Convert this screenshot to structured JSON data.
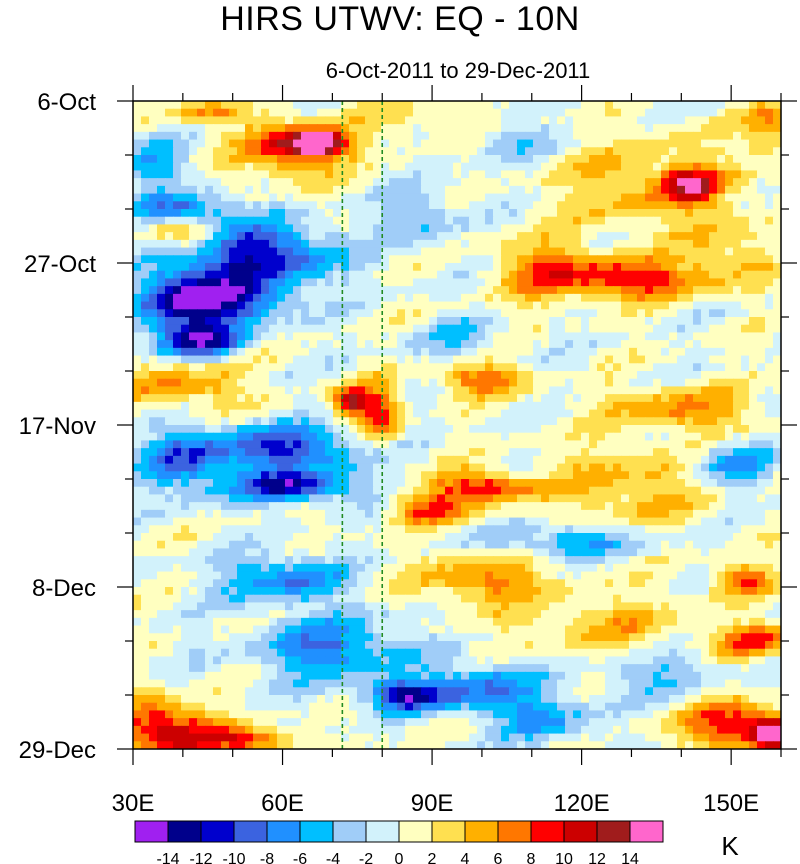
{
  "chart_data": {
    "type": "heatmap",
    "title": "HIRS UTWV: EQ - 10N",
    "subtitle": "6-Oct-2011 to 29-Dec-2011",
    "x_axis": {
      "range": [
        30,
        160
      ],
      "tick_values": [
        30,
        60,
        90,
        120,
        150
      ],
      "tick_labels": [
        "30E",
        "60E",
        "90E",
        "120E",
        "150E"
      ],
      "minor_step": 10
    },
    "y_axis": {
      "range_days": [
        0,
        84
      ],
      "tick_days": [
        0,
        21,
        42,
        63,
        84
      ],
      "tick_labels": [
        "6-Oct",
        "27-Oct",
        "17-Nov",
        "8-Dec",
        "29-Dec"
      ],
      "minor_step_days": 7,
      "direction": "time increases downward"
    },
    "reference_lines_lon": [
      72,
      80
    ],
    "colorbar": {
      "unit": "K",
      "levels": [
        -14,
        -12,
        -10,
        -8,
        -6,
        -4,
        -2,
        0,
        2,
        4,
        6,
        8,
        10,
        12,
        14
      ],
      "level_labels": [
        "-14",
        "-12",
        "-10",
        "-8",
        "-6",
        "-4",
        "-2",
        "0",
        "2",
        "4",
        "6",
        "8",
        "10",
        "12",
        "14"
      ],
      "colors": [
        "#a020f0",
        "#00008b",
        "#0000cd",
        "#3b63e0",
        "#2090ff",
        "#00bfff",
        "#a0cdf8",
        "#d2f2fb",
        "#ffffc0",
        "#ffe050",
        "#ffb000",
        "#ff7700",
        "#ff0000",
        "#cc0000",
        "#a01c1c",
        "#ff66cc"
      ]
    },
    "anomaly_features": [
      {
        "lon": 67,
        "day": 5.5,
        "value": 15,
        "lon_radius": 5,
        "day_radius": 1.5
      },
      {
        "lon": 62,
        "day": 6,
        "value": 10,
        "lon_radius": 10,
        "day_radius": 3.5
      },
      {
        "lon": 45,
        "day": 1.5,
        "value": 6,
        "lon_radius": 7,
        "day_radius": 1.5
      },
      {
        "lon": 90,
        "day": 3,
        "value": 3,
        "lon_radius": 15,
        "day_radius": 3
      },
      {
        "lon": 142,
        "day": 11,
        "value": 10,
        "lon_radius": 5,
        "day_radius": 2
      },
      {
        "lon": 135,
        "day": 11,
        "value": 5,
        "lon_radius": 20,
        "day_radius": 6
      },
      {
        "lon": 158,
        "day": 3,
        "value": 6,
        "lon_radius": 5,
        "day_radius": 4
      },
      {
        "lon": 40,
        "day": 17.5,
        "value": 6,
        "lon_radius": 8,
        "day_radius": 2
      },
      {
        "lon": 130,
        "day": 23,
        "value": 10,
        "lon_radius": 14,
        "day_radius": 2.5
      },
      {
        "lon": 112,
        "day": 22,
        "value": 6,
        "lon_radius": 10,
        "day_radius": 4
      },
      {
        "lon": 150,
        "day": 20,
        "value": 4,
        "lon_radius": 8,
        "day_radius": 4
      },
      {
        "lon": 100,
        "day": 36,
        "value": 8,
        "lon_radius": 9,
        "day_radius": 2
      },
      {
        "lon": 74,
        "day": 39,
        "value": 12,
        "lon_radius": 4,
        "day_radius": 2
      },
      {
        "lon": 80,
        "day": 41,
        "value": 8,
        "lon_radius": 4,
        "day_radius": 4
      },
      {
        "lon": 40,
        "day": 37,
        "value": 6,
        "lon_radius": 12,
        "day_radius": 3
      },
      {
        "lon": 140,
        "day": 40,
        "value": 6,
        "lon_radius": 15,
        "day_radius": 3
      },
      {
        "lon": 100,
        "day": 50,
        "value": 10,
        "lon_radius": 10,
        "day_radius": 2
      },
      {
        "lon": 90,
        "day": 53,
        "value": 8,
        "lon_radius": 8,
        "day_radius": 2
      },
      {
        "lon": 130,
        "day": 50,
        "value": 5,
        "lon_radius": 15,
        "day_radius": 5
      },
      {
        "lon": 100,
        "day": 62,
        "value": 7,
        "lon_radius": 12,
        "day_radius": 3
      },
      {
        "lon": 125,
        "day": 68,
        "value": 4,
        "lon_radius": 20,
        "day_radius": 4
      },
      {
        "lon": 152,
        "day": 62,
        "value": 8,
        "lon_radius": 6,
        "day_radius": 2
      },
      {
        "lon": 155,
        "day": 70,
        "value": 8,
        "lon_radius": 8,
        "day_radius": 2
      },
      {
        "lon": 150,
        "day": 81,
        "value": 10,
        "lon_radius": 10,
        "day_radius": 3
      },
      {
        "lon": 158,
        "day": 82,
        "value": 14,
        "lon_radius": 4,
        "day_radius": 2
      },
      {
        "lon": 40,
        "day": 82,
        "value": 10,
        "lon_radius": 10,
        "day_radius": 3
      },
      {
        "lon": 33,
        "day": 80,
        "value": 6,
        "lon_radius": 6,
        "day_radius": 4
      },
      {
        "lon": 55,
        "day": 83,
        "value": 8,
        "lon_radius": 8,
        "day_radius": 1.5
      },
      {
        "lon": 34,
        "day": 8,
        "value": -6,
        "lon_radius": 6,
        "day_radius": 3
      },
      {
        "lon": 40,
        "day": 14,
        "value": -8,
        "lon_radius": 10,
        "day_radius": 2
      },
      {
        "lon": 55,
        "day": 20,
        "value": -12,
        "lon_radius": 15,
        "day_radius": 4
      },
      {
        "lon": 48,
        "day": 26,
        "value": -12,
        "lon_radius": 12,
        "day_radius": 3
      },
      {
        "lon": 44,
        "day": 31,
        "value": -12,
        "lon_radius": 8,
        "day_radius": 2
      },
      {
        "lon": 38,
        "day": 26,
        "value": -8,
        "lon_radius": 8,
        "day_radius": 5
      },
      {
        "lon": 88,
        "day": 15,
        "value": -4,
        "lon_radius": 8,
        "day_radius": 4
      },
      {
        "lon": 105,
        "day": 5,
        "value": -4,
        "lon_radius": 10,
        "day_radius": 3
      },
      {
        "lon": 60,
        "day": 45,
        "value": -10,
        "lon_radius": 16,
        "day_radius": 3
      },
      {
        "lon": 62,
        "day": 50,
        "value": -12,
        "lon_radius": 12,
        "day_radius": 2
      },
      {
        "lon": 40,
        "day": 47,
        "value": -8,
        "lon_radius": 8,
        "day_radius": 4
      },
      {
        "lon": 95,
        "day": 31,
        "value": -3,
        "lon_radius": 10,
        "day_radius": 3
      },
      {
        "lon": 60,
        "day": 62,
        "value": -8,
        "lon_radius": 12,
        "day_radius": 3
      },
      {
        "lon": 70,
        "day": 71,
        "value": -8,
        "lon_radius": 15,
        "day_radius": 4
      },
      {
        "lon": 85,
        "day": 77,
        "value": -12,
        "lon_radius": 8,
        "day_radius": 2
      },
      {
        "lon": 100,
        "day": 76,
        "value": -8,
        "lon_radius": 10,
        "day_radius": 3
      },
      {
        "lon": 118,
        "day": 57,
        "value": -6,
        "lon_radius": 15,
        "day_radius": 2
      },
      {
        "lon": 112,
        "day": 80,
        "value": -6,
        "lon_radius": 10,
        "day_radius": 3
      },
      {
        "lon": 150,
        "day": 47,
        "value": -6,
        "lon_radius": 8,
        "day_radius": 3
      },
      {
        "lon": 135,
        "day": 74,
        "value": -4,
        "lon_radius": 12,
        "day_radius": 3
      }
    ]
  }
}
